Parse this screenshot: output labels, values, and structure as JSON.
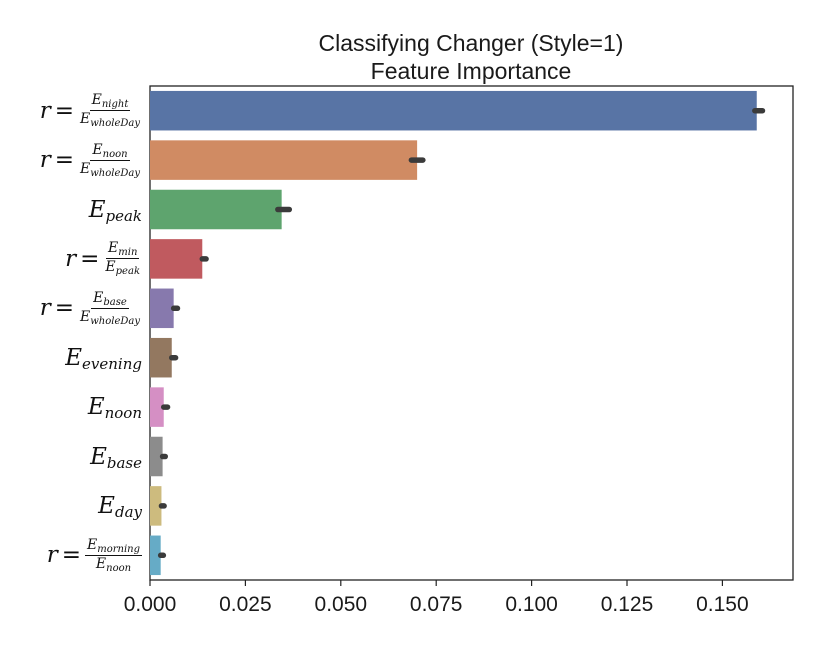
{
  "chart_data": {
    "type": "bar",
    "orientation": "horizontal",
    "title": [
      "Classifying Changer (Style=1)",
      "Feature Importance"
    ],
    "xlabel": "",
    "ylabel": "",
    "xlim": [
      0,
      0.1685
    ],
    "xticks": [
      "0.000",
      "0.025",
      "0.050",
      "0.075",
      "0.100",
      "0.125",
      "0.150"
    ],
    "xtick_values": [
      0,
      0.025,
      0.05,
      0.075,
      0.1,
      0.125,
      0.15
    ],
    "grid": false,
    "categories": [
      {
        "kind": "frac",
        "prefix": "r =",
        "num_base": "E",
        "num_sub": "night",
        "den_base": "E",
        "den_sub": "wholeDay"
      },
      {
        "kind": "frac",
        "prefix": "r =",
        "num_base": "E",
        "num_sub": "noon",
        "den_base": "E",
        "den_sub": "wholeDay"
      },
      {
        "kind": "simple",
        "base": "E",
        "sub": "peak"
      },
      {
        "kind": "frac",
        "prefix": "r =",
        "num_base": "E",
        "num_sub": "min",
        "den_base": "E",
        "den_sub": "peak"
      },
      {
        "kind": "frac",
        "prefix": "r =",
        "num_base": "E",
        "num_sub": "base",
        "den_base": "E",
        "den_sub": "wholeDay"
      },
      {
        "kind": "simple",
        "base": "E",
        "sub": "evening"
      },
      {
        "kind": "simple",
        "base": "E",
        "sub": "noon"
      },
      {
        "kind": "simple",
        "base": "E",
        "sub": "base"
      },
      {
        "kind": "simple",
        "base": "E",
        "sub": "day"
      },
      {
        "kind": "frac",
        "prefix": "r =",
        "num_base": "E",
        "num_sub": "morning",
        "den_base": "E",
        "den_sub": "noon"
      }
    ],
    "values": [
      0.159,
      0.07,
      0.0345,
      0.0137,
      0.0062,
      0.0057,
      0.0036,
      0.0033,
      0.003,
      0.0028
    ],
    "error_intervals": [
      [
        0.1585,
        0.1605
      ],
      [
        0.0685,
        0.0715
      ],
      [
        0.0335,
        0.0365
      ],
      [
        0.0137,
        0.0147
      ],
      [
        0.0062,
        0.0072
      ],
      [
        0.0057,
        0.0067
      ],
      [
        0.0036,
        0.0046
      ],
      [
        0.0033,
        0.004
      ],
      [
        0.003,
        0.0037
      ],
      [
        0.0028,
        0.0035
      ]
    ],
    "colors": [
      "#5874a5",
      "#d08b63",
      "#5ea46e",
      "#c05a5f",
      "#8779ad",
      "#937860",
      "#d58fc4",
      "#8c8c8c",
      "#cdbb7e",
      "#66abc6"
    ]
  }
}
